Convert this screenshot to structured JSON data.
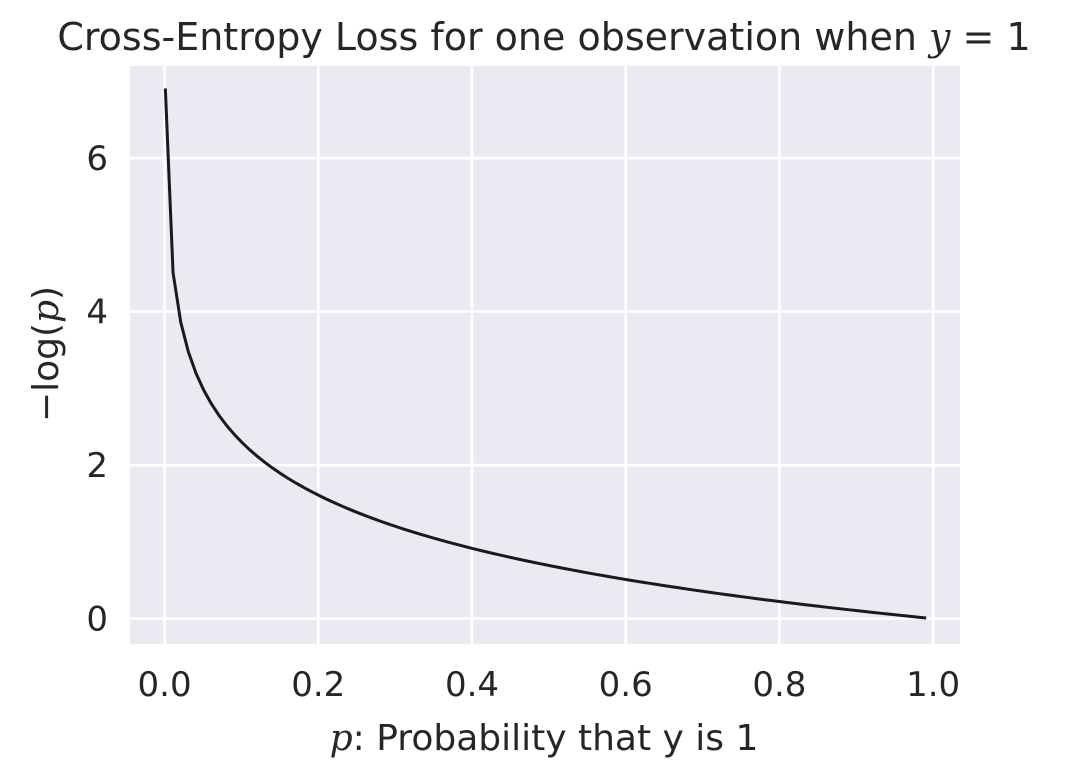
{
  "chart_data": {
    "type": "line",
    "title": {
      "text": "Cross-Entropy Loss for one observation when ",
      "math_var": "y",
      "math_rest": " = 1"
    },
    "xlabel": {
      "math_var": "p",
      "text": ": Probability that y is 1"
    },
    "ylabel": {
      "prefix": "−log(",
      "math_var": "p",
      "suffix": ")"
    },
    "xlim": [
      -0.045,
      1.035
    ],
    "ylim": [
      -0.33,
      7.2
    ],
    "xticks": [
      0.0,
      0.2,
      0.4,
      0.6,
      0.8,
      1.0
    ],
    "xtick_labels": [
      "0.0",
      "0.2",
      "0.4",
      "0.6",
      "0.8",
      "1.0"
    ],
    "yticks": [
      0,
      2,
      4,
      6
    ],
    "ytick_labels": [
      "0",
      "2",
      "4",
      "6"
    ],
    "grid": true,
    "background": "#eaeaf2",
    "line_color": "#1a1a1a",
    "function": "-log(p)",
    "p_start": 0.001,
    "p_end": 0.991,
    "p_step": 0.01
  }
}
